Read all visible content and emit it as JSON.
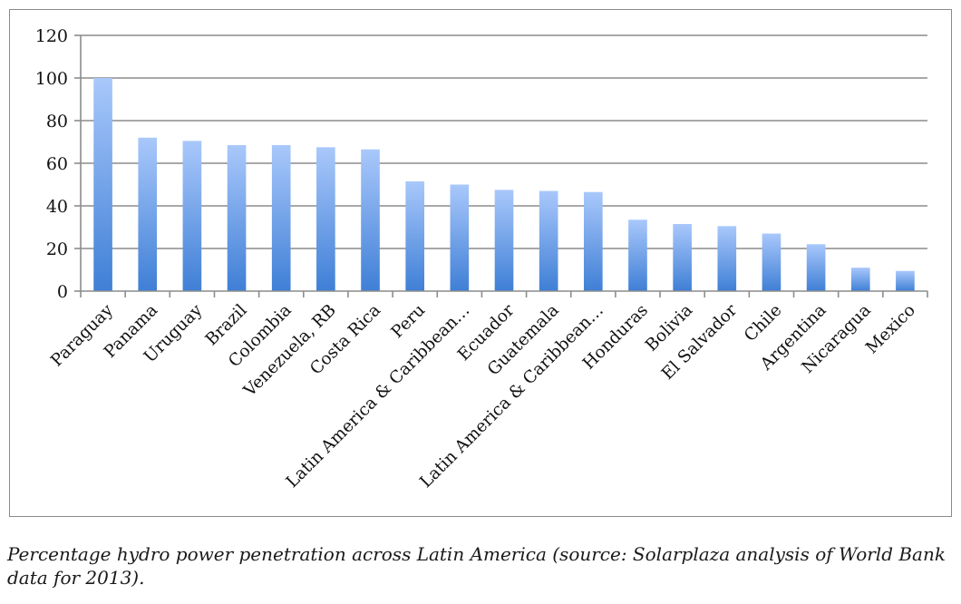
{
  "caption": "Percentage hydro power penetration across Latin America (source: Solarplaza analysis of World Bank data for 2013).",
  "chart_data": {
    "type": "bar",
    "categories": [
      "Paraguay",
      "Panama",
      "Uruguay",
      "Brazil",
      "Colombia",
      "Venezuela, RB",
      "Costa Rica",
      "Peru",
      "Latin America & Caribbean…",
      "Ecuador",
      "Guatemala",
      "Latin America & Caribbean…",
      "Honduras",
      "Bolivia",
      "El Salvador",
      "Chile",
      "Argentina",
      "Nicaragua",
      "Mexico"
    ],
    "values": [
      100,
      72,
      70.5,
      68.5,
      68.5,
      67.5,
      66.5,
      51.5,
      50,
      47.5,
      47,
      46.5,
      33.5,
      31.5,
      30.5,
      27,
      22,
      11,
      9.5
    ],
    "ylim": [
      0,
      120
    ],
    "yticks": [
      0,
      20,
      40,
      60,
      80,
      100,
      120
    ],
    "grid": true,
    "legend": "none",
    "colors": {
      "bar_top": "#a9c8fb",
      "bar_bottom": "#3f7fd6",
      "grid": "#8c8c8c",
      "axis": "#8c8c8c"
    }
  }
}
